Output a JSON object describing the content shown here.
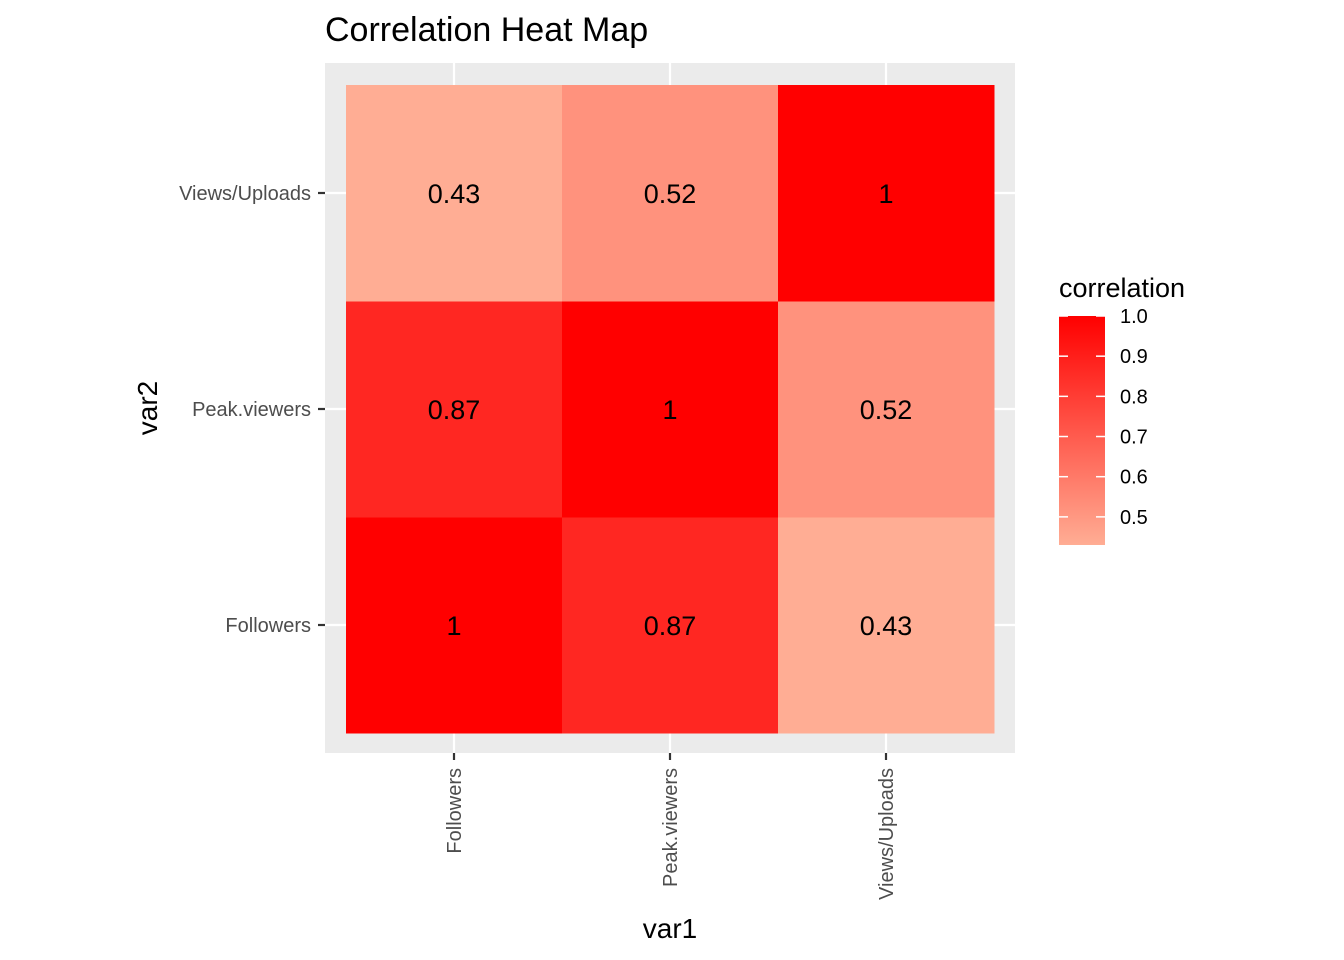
{
  "chart_data": {
    "type": "heatmap",
    "title": "Correlation Heat Map",
    "xlabel": "var1",
    "ylabel": "var2",
    "x_categories": [
      "Followers",
      "Peak.viewers",
      "Views/Uploads"
    ],
    "y_categories": [
      "Followers",
      "Peak.viewers",
      "Views/Uploads"
    ],
    "cells": [
      {
        "x": "Followers",
        "y": "Followers",
        "value": 1,
        "label": "1"
      },
      {
        "x": "Peak.viewers",
        "y": "Followers",
        "value": 0.87,
        "label": "0.87"
      },
      {
        "x": "Views/Uploads",
        "y": "Followers",
        "value": 0.43,
        "label": "0.43"
      },
      {
        "x": "Followers",
        "y": "Peak.viewers",
        "value": 0.87,
        "label": "0.87"
      },
      {
        "x": "Peak.viewers",
        "y": "Peak.viewers",
        "value": 1,
        "label": "1"
      },
      {
        "x": "Views/Uploads",
        "y": "Peak.viewers",
        "value": 0.52,
        "label": "0.52"
      },
      {
        "x": "Followers",
        "y": "Views/Uploads",
        "value": 0.43,
        "label": "0.43"
      },
      {
        "x": "Peak.viewers",
        "y": "Views/Uploads",
        "value": 0.52,
        "label": "0.52"
      },
      {
        "x": "Views/Uploads",
        "y": "Views/Uploads",
        "value": 1,
        "label": "1"
      }
    ],
    "legend": {
      "title": "correlation",
      "position": "right",
      "range": [
        0.43,
        1.0
      ],
      "ticks": [
        1.0,
        0.9,
        0.8,
        0.7,
        0.6,
        0.5
      ],
      "tick_labels": [
        "1.0",
        "0.9",
        "0.8",
        "0.7",
        "0.6",
        "0.5"
      ],
      "low_color": "#FFAD94",
      "high_color": "#FF0000"
    },
    "panel_background": "#EBEBEB",
    "grid": true
  }
}
